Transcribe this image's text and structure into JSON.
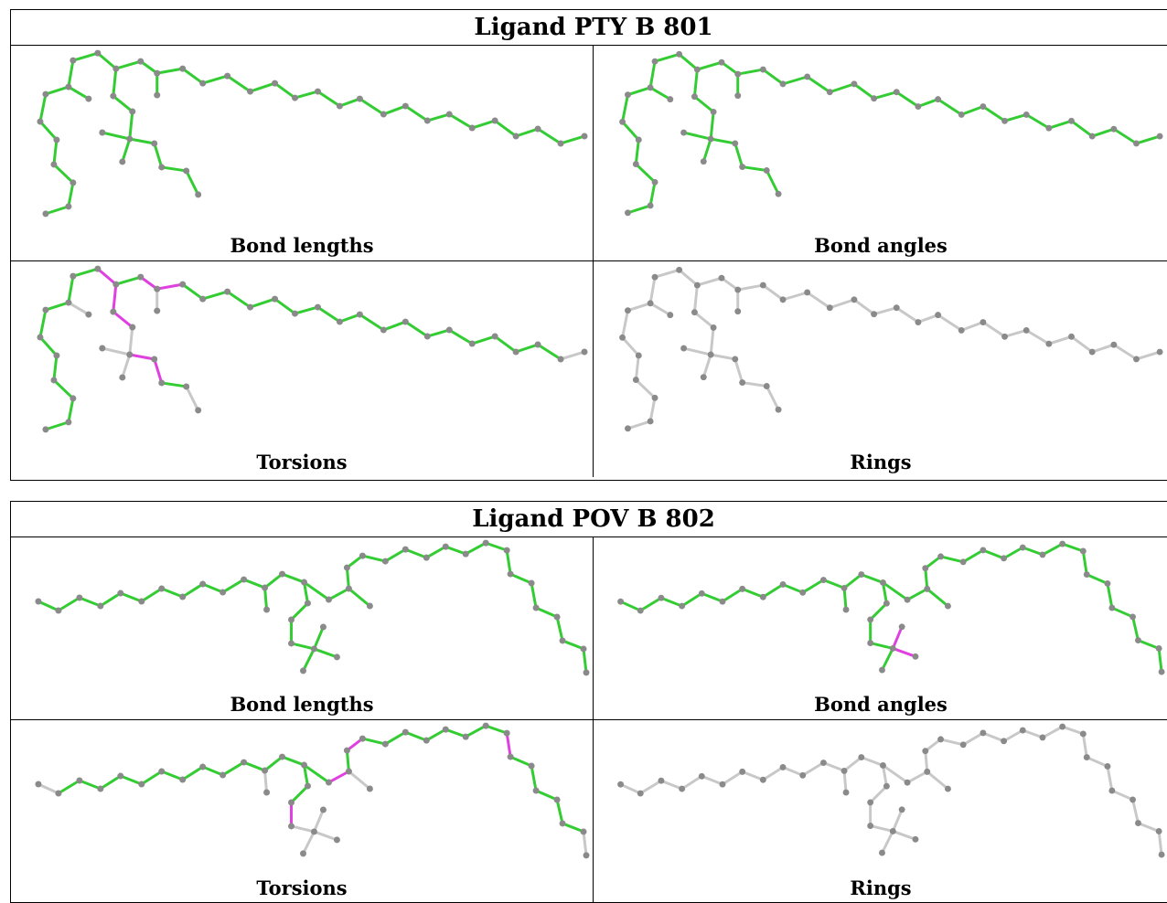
{
  "colors": {
    "good": "#33cc33",
    "bad": "#e040e0",
    "neutral": "#c8c8c8",
    "atom": "#8a8a8a"
  },
  "ligands": [
    {
      "title": "Ligand PTY B 801",
      "panels": [
        {
          "caption": "Bond lengths",
          "style": "all-good"
        },
        {
          "caption": "Bond angles",
          "style": "all-good"
        },
        {
          "caption": "Torsions",
          "style": "torsions"
        },
        {
          "caption": "Rings",
          "style": "neutral"
        }
      ]
    },
    {
      "title": "Ligand POV B 802",
      "panels": [
        {
          "caption": "Bond lengths",
          "style": "all-good"
        },
        {
          "caption": "Bond angles",
          "style": "angles"
        },
        {
          "caption": "Torsions",
          "style": "torsions"
        },
        {
          "caption": "Rings",
          "style": "neutral"
        }
      ]
    }
  ]
}
